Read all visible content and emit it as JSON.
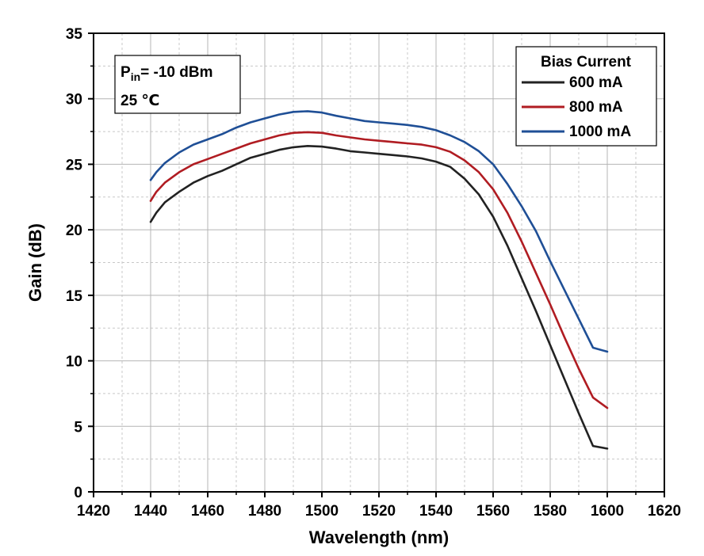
{
  "chart_data": {
    "type": "line",
    "title": "",
    "xlabel": "Wavelength (nm)",
    "ylabel": "Gain (dB)",
    "xlim": [
      1420,
      1620
    ],
    "ylim": [
      0,
      35
    ],
    "xticks": [
      1420,
      1440,
      1460,
      1480,
      1500,
      1520,
      1540,
      1560,
      1580,
      1600,
      1620
    ],
    "yticks": [
      0,
      5,
      10,
      15,
      20,
      25,
      30,
      35
    ],
    "grid": true,
    "legend": {
      "title": "Bias Current",
      "placement": "top-right"
    },
    "annotation": {
      "line1_prefix": "P",
      "line1_sub": "in",
      "line1_rest": "= -10 dBm",
      "line2": "25 ℃",
      "placement": "top-left"
    },
    "series": [
      {
        "name": "600 mA",
        "color": "#222222",
        "x": [
          1440,
          1442,
          1445,
          1450,
          1455,
          1460,
          1465,
          1470,
          1475,
          1480,
          1485,
          1490,
          1495,
          1500,
          1505,
          1510,
          1515,
          1520,
          1525,
          1530,
          1535,
          1540,
          1545,
          1550,
          1555,
          1560,
          1565,
          1570,
          1575,
          1580,
          1585,
          1590,
          1595,
          1600
        ],
        "y": [
          20.6,
          21.3,
          22.1,
          22.9,
          23.6,
          24.1,
          24.5,
          25.0,
          25.5,
          25.8,
          26.1,
          26.3,
          26.4,
          26.35,
          26.2,
          26.0,
          25.9,
          25.8,
          25.7,
          25.6,
          25.45,
          25.2,
          24.8,
          23.9,
          22.7,
          21.0,
          18.8,
          16.3,
          13.8,
          11.2,
          8.6,
          6.0,
          3.5,
          3.3
        ]
      },
      {
        "name": "800 mA",
        "color": "#b01c22",
        "x": [
          1440,
          1442,
          1445,
          1450,
          1455,
          1460,
          1465,
          1470,
          1475,
          1480,
          1485,
          1490,
          1495,
          1500,
          1505,
          1510,
          1515,
          1520,
          1525,
          1530,
          1535,
          1540,
          1545,
          1550,
          1555,
          1560,
          1565,
          1570,
          1575,
          1580,
          1585,
          1590,
          1595,
          1600
        ],
        "y": [
          22.2,
          22.9,
          23.6,
          24.4,
          25.0,
          25.4,
          25.8,
          26.2,
          26.6,
          26.9,
          27.2,
          27.4,
          27.45,
          27.4,
          27.2,
          27.05,
          26.9,
          26.8,
          26.7,
          26.6,
          26.5,
          26.3,
          25.95,
          25.3,
          24.4,
          23.1,
          21.3,
          19.1,
          16.7,
          14.3,
          11.8,
          9.4,
          7.2,
          6.4
        ]
      },
      {
        "name": "1000 mA",
        "color": "#1f4f96",
        "x": [
          1440,
          1442,
          1445,
          1450,
          1455,
          1460,
          1465,
          1470,
          1475,
          1480,
          1485,
          1490,
          1495,
          1500,
          1505,
          1510,
          1515,
          1520,
          1525,
          1530,
          1535,
          1540,
          1545,
          1550,
          1555,
          1560,
          1565,
          1570,
          1575,
          1580,
          1585,
          1590,
          1595,
          1600
        ],
        "y": [
          23.8,
          24.4,
          25.1,
          25.9,
          26.5,
          26.9,
          27.3,
          27.8,
          28.2,
          28.5,
          28.8,
          29.0,
          29.05,
          28.95,
          28.7,
          28.5,
          28.3,
          28.2,
          28.1,
          28.0,
          27.85,
          27.6,
          27.2,
          26.7,
          26.0,
          25.0,
          23.5,
          21.8,
          19.9,
          17.6,
          15.4,
          13.2,
          11.0,
          10.7
        ]
      }
    ]
  }
}
